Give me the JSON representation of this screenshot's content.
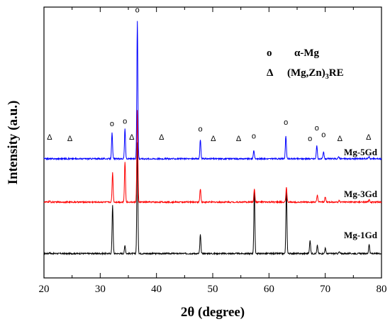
{
  "chart_data": {
    "type": "line",
    "xlabel": "2θ (degree)",
    "ylabel": "Intensity (a.u.)",
    "xlim": [
      20,
      80
    ],
    "xticks": [
      20,
      25,
      30,
      35,
      40,
      45,
      50,
      55,
      60,
      65,
      70,
      75,
      80
    ],
    "xtick_labels": [
      "20",
      "30",
      "40",
      "50",
      "60",
      "70",
      "80"
    ],
    "ylim": [
      0,
      100
    ],
    "grid": false,
    "legend": {
      "position": "top-right",
      "entries": [
        {
          "symbol": "o",
          "label": "α-Mg"
        },
        {
          "symbol": "Δ",
          "label": "(Mg,Zn)",
          "subscript": "3",
          "suffix": "RE"
        }
      ]
    },
    "series": [
      {
        "name": "Mg-1Gd",
        "color": "#000000",
        "baseline": 9,
        "peaks": [
          [
            21,
            0.4
          ],
          [
            32.2,
            18
          ],
          [
            34.4,
            3
          ],
          [
            36.6,
            41
          ],
          [
            47.8,
            7
          ],
          [
            57.4,
            23
          ],
          [
            63.1,
            24
          ],
          [
            67.3,
            5
          ],
          [
            68.6,
            3
          ],
          [
            70.0,
            2
          ],
          [
            72.5,
            0.6
          ],
          [
            77.8,
            3.5
          ]
        ]
      },
      {
        "name": "Mg-3Gd",
        "color": "#ff0000",
        "baseline": 28,
        "peaks": [
          [
            21,
            0.4
          ],
          [
            32.2,
            11
          ],
          [
            34.4,
            15
          ],
          [
            36.6,
            34
          ],
          [
            47.8,
            5
          ],
          [
            57.4,
            5
          ],
          [
            63.1,
            5.5
          ],
          [
            68.6,
            2.5
          ],
          [
            70.0,
            2
          ],
          [
            72.5,
            0.6
          ],
          [
            77.8,
            0.8
          ]
        ]
      },
      {
        "name": "Mg-5Gd",
        "color": "#0000ff",
        "baseline": 44,
        "peaks": [
          [
            32.1,
            9.5
          ],
          [
            34.4,
            11
          ],
          [
            36.6,
            51
          ],
          [
            47.8,
            7
          ],
          [
            57.3,
            3.2
          ],
          [
            63.0,
            8.5
          ],
          [
            68.5,
            5
          ],
          [
            69.7,
            2.5
          ],
          [
            72.4,
            0.8
          ],
          [
            77.8,
            0.8
          ]
        ]
      }
    ],
    "markers": [
      {
        "symbol": "o",
        "x": 36.6,
        "y": 98
      },
      {
        "symbol": "o",
        "x": 32.1,
        "y": 56
      },
      {
        "symbol": "o",
        "x": 34.4,
        "y": 57
      },
      {
        "symbol": "o",
        "x": 47.8,
        "y": 54
      },
      {
        "symbol": "o",
        "x": 57.3,
        "y": 51.5
      },
      {
        "symbol": "o",
        "x": 63.0,
        "y": 56.5
      },
      {
        "symbol": "o",
        "x": 67.3,
        "y": 50.5
      },
      {
        "symbol": "o",
        "x": 68.5,
        "y": 54.5
      },
      {
        "symbol": "o",
        "x": 69.7,
        "y": 52
      },
      {
        "symbol": "Δ",
        "x": 21.0,
        "y": 51
      },
      {
        "symbol": "Δ",
        "x": 24.6,
        "y": 50.5
      },
      {
        "symbol": "Δ",
        "x": 35.6,
        "y": 51
      },
      {
        "symbol": "Δ",
        "x": 40.9,
        "y": 51
      },
      {
        "symbol": "Δ",
        "x": 50.1,
        "y": 50.5
      },
      {
        "symbol": "Δ",
        "x": 54.6,
        "y": 50.5
      },
      {
        "symbol": "Δ",
        "x": 72.6,
        "y": 50.5
      },
      {
        "symbol": "Δ",
        "x": 77.7,
        "y": 51
      }
    ]
  }
}
